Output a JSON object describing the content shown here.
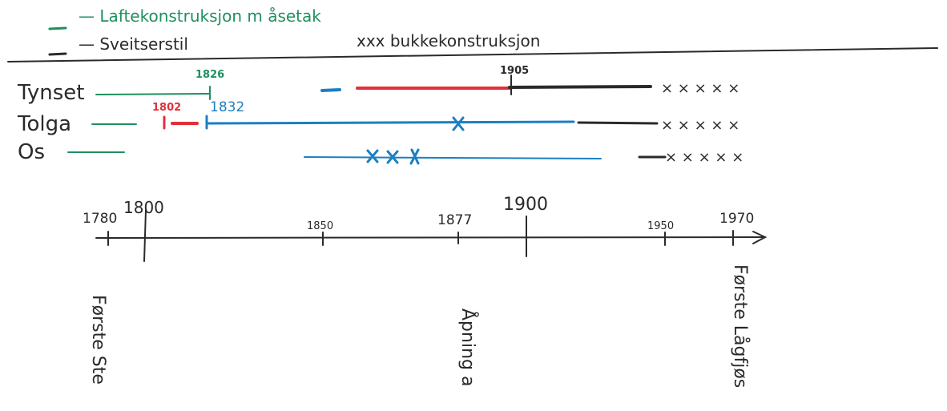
{
  "legend": {
    "items": [
      "— Laftekonstruksjon m åsetak",
      "— Sveitserstil"
    ],
    "note": "xxx bukkekonstruksjon"
  },
  "rows": [
    {
      "label": "Tynset",
      "marks": [
        "1826",
        "1905"
      ],
      "crosses": "× × × × ×"
    },
    {
      "label": "Tolga",
      "marks": [
        "1802",
        "1832"
      ],
      "crosses": "× × × × ×"
    },
    {
      "label": "Os",
      "crosses": "× × × × ×"
    }
  ],
  "axis": {
    "ticks": [
      "1780",
      "1800",
      "1850",
      "1877",
      "1900",
      "1950",
      "1970"
    ]
  },
  "events": [
    "Første Ste",
    "Åpning a",
    "Første Lågfjøs"
  ]
}
